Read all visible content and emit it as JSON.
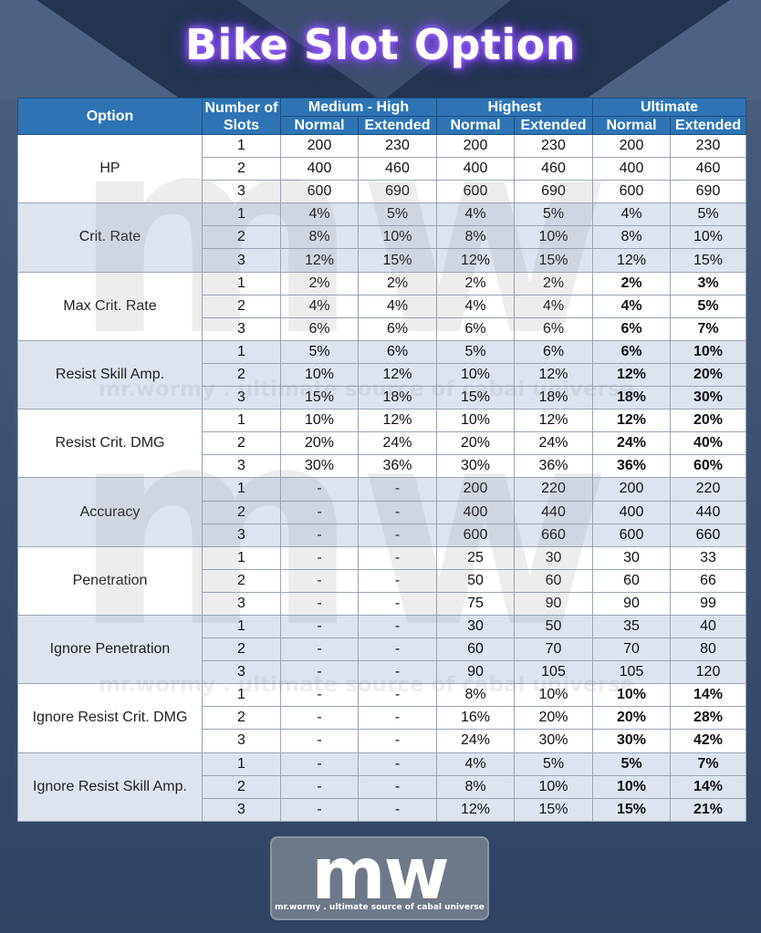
{
  "title": "Bike Slot Option",
  "header": {
    "option": "Option",
    "number_of_slots": "Number of Slots",
    "groups": [
      "Medium - High",
      "Highest",
      "Ultimate"
    ],
    "sub": [
      "Normal",
      "Extended",
      "Normal",
      "Extended",
      "Normal",
      "Extended"
    ]
  },
  "rows": [
    {
      "option": "HP",
      "slots": [
        {
          "n": "1",
          "v": [
            "200",
            "230",
            "200",
            "230",
            "200",
            "230"
          ]
        },
        {
          "n": "2",
          "v": [
            "400",
            "460",
            "400",
            "460",
            "400",
            "460"
          ]
        },
        {
          "n": "3",
          "v": [
            "600",
            "690",
            "600",
            "690",
            "600",
            "690"
          ]
        }
      ]
    },
    {
      "option": "Crit. Rate",
      "slots": [
        {
          "n": "1",
          "v": [
            "4%",
            "5%",
            "4%",
            "5%",
            "4%",
            "5%"
          ]
        },
        {
          "n": "2",
          "v": [
            "8%",
            "10%",
            "8%",
            "10%",
            "8%",
            "10%"
          ]
        },
        {
          "n": "3",
          "v": [
            "12%",
            "15%",
            "12%",
            "15%",
            "12%",
            "15%"
          ]
        }
      ]
    },
    {
      "option": "Max Crit. Rate",
      "slots": [
        {
          "n": "1",
          "v": [
            "2%",
            "2%",
            "2%",
            "2%",
            "2%",
            "3%"
          ]
        },
        {
          "n": "2",
          "v": [
            "4%",
            "4%",
            "4%",
            "4%",
            "4%",
            "5%"
          ]
        },
        {
          "n": "3",
          "v": [
            "6%",
            "6%",
            "6%",
            "6%",
            "6%",
            "7%"
          ]
        }
      ]
    },
    {
      "option": "Resist Skill Amp.",
      "slots": [
        {
          "n": "1",
          "v": [
            "5%",
            "6%",
            "5%",
            "6%",
            "6%",
            "10%"
          ]
        },
        {
          "n": "2",
          "v": [
            "10%",
            "12%",
            "10%",
            "12%",
            "12%",
            "20%"
          ]
        },
        {
          "n": "3",
          "v": [
            "15%",
            "18%",
            "15%",
            "18%",
            "18%",
            "30%"
          ]
        }
      ]
    },
    {
      "option": "Resist Crit. DMG",
      "slots": [
        {
          "n": "1",
          "v": [
            "10%",
            "12%",
            "10%",
            "12%",
            "12%",
            "20%"
          ]
        },
        {
          "n": "2",
          "v": [
            "20%",
            "24%",
            "20%",
            "24%",
            "24%",
            "40%"
          ]
        },
        {
          "n": "3",
          "v": [
            "30%",
            "36%",
            "30%",
            "36%",
            "36%",
            "60%"
          ]
        }
      ]
    },
    {
      "option": "Accuracy",
      "slots": [
        {
          "n": "1",
          "v": [
            "-",
            "-",
            "200",
            "220",
            "200",
            "220"
          ]
        },
        {
          "n": "2",
          "v": [
            "-",
            "-",
            "400",
            "440",
            "400",
            "440"
          ]
        },
        {
          "n": "3",
          "v": [
            "-",
            "-",
            "600",
            "660",
            "600",
            "660"
          ]
        }
      ]
    },
    {
      "option": "Penetration",
      "slots": [
        {
          "n": "1",
          "v": [
            "-",
            "-",
            "25",
            "30",
            "30",
            "33"
          ]
        },
        {
          "n": "2",
          "v": [
            "-",
            "-",
            "50",
            "60",
            "60",
            "66"
          ]
        },
        {
          "n": "3",
          "v": [
            "-",
            "-",
            "75",
            "90",
            "90",
            "99"
          ]
        }
      ]
    },
    {
      "option": "Ignore Penetration",
      "slots": [
        {
          "n": "1",
          "v": [
            "-",
            "-",
            "30",
            "50",
            "35",
            "40"
          ]
        },
        {
          "n": "2",
          "v": [
            "-",
            "-",
            "60",
            "70",
            "70",
            "80"
          ]
        },
        {
          "n": "3",
          "v": [
            "-",
            "-",
            "90",
            "105",
            "105",
            "120"
          ]
        }
      ]
    },
    {
      "option": "Ignore Resist Crit. DMG",
      "slots": [
        {
          "n": "1",
          "v": [
            "-",
            "-",
            "8%",
            "10%",
            "10%",
            "14%"
          ]
        },
        {
          "n": "2",
          "v": [
            "-",
            "-",
            "16%",
            "20%",
            "20%",
            "28%"
          ]
        },
        {
          "n": "3",
          "v": [
            "-",
            "-",
            "24%",
            "30%",
            "30%",
            "42%"
          ]
        }
      ]
    },
    {
      "option": "Ignore Resist Skill Amp.",
      "slots": [
        {
          "n": "1",
          "v": [
            "-",
            "-",
            "4%",
            "5%",
            "5%",
            "7%"
          ]
        },
        {
          "n": "2",
          "v": [
            "-",
            "-",
            "8%",
            "10%",
            "10%",
            "14%"
          ]
        },
        {
          "n": "3",
          "v": [
            "-",
            "-",
            "12%",
            "15%",
            "15%",
            "21%"
          ]
        }
      ]
    }
  ],
  "bold_ultimate_rows": [
    2,
    3,
    4,
    8,
    9
  ],
  "watermark": {
    "letters": "mw",
    "text": "mr.wormy . ultimate source of cabal universe"
  },
  "logo": {
    "letters": "mw",
    "subtitle": "mr.wormy . ultimate source of cabal universe"
  },
  "colors": {
    "header_bg": "#2e74b5",
    "row_white": "#ffffff",
    "row_blue": "#dde4f0",
    "title_glow": "#8a4dff"
  }
}
